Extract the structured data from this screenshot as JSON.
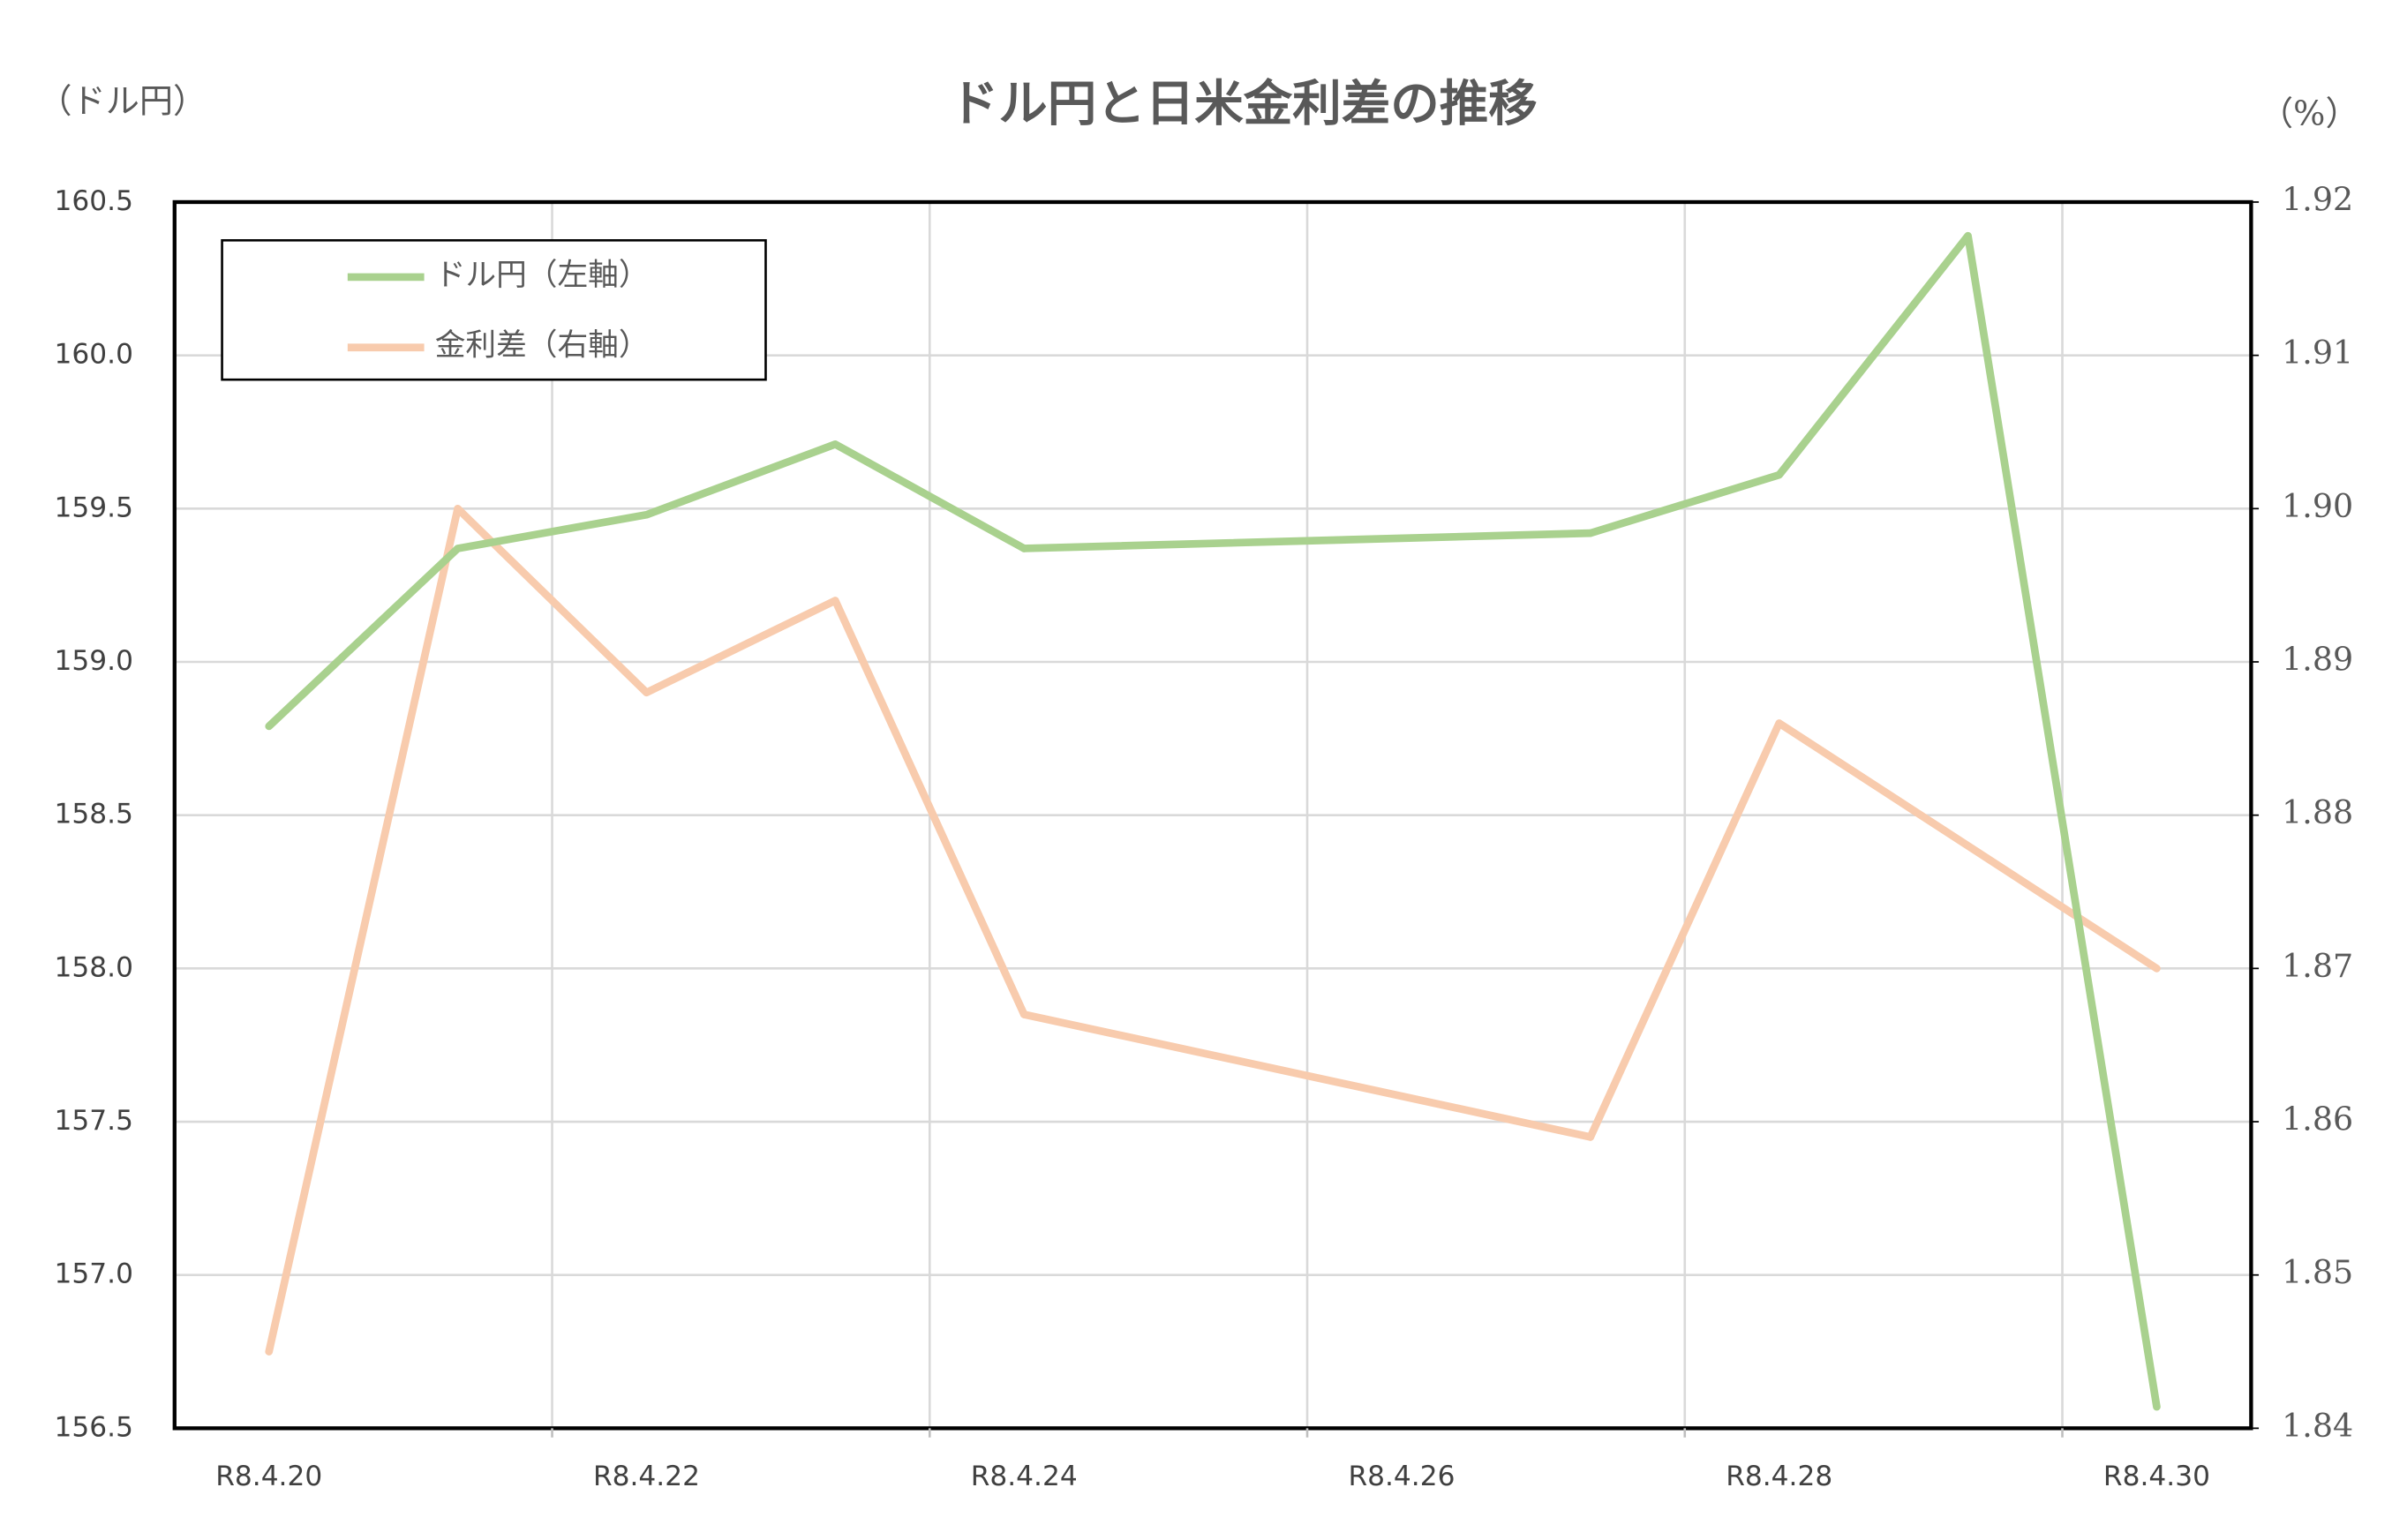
{
  "chart_data": {
    "type": "line",
    "title": "ドル円と日米金利差の推移",
    "y_axis_label": "（ドル円）",
    "y2_axis_label": "（%）",
    "categories": [
      "R8.4.20",
      null,
      "R8.4.22",
      null,
      "R8.4.24",
      null,
      "R8.4.26",
      null,
      "R8.4.28",
      null,
      "R8.4.30"
    ],
    "series": [
      {
        "name": "ドル円（左軸）",
        "color": "#a9d18e",
        "values": [
          158.79,
          159.37,
          159.48,
          159.71,
          159.37,
          null,
          null,
          159.42,
          159.61,
          160.39,
          156.57
        ]
      },
      {
        "name": "金利差（右軸）",
        "color": "#f8cbad",
        "axis": "y2",
        "values": [
          1.845,
          1.9,
          1.888,
          1.894,
          1.867,
          null,
          null,
          1.859,
          1.886,
          1.878,
          1.87
        ]
      }
    ],
    "span_gaps": true,
    "ylim": [
      156.5,
      160.5
    ],
    "yticks": [
      156.5,
      {
        "value": 157,
        "label": "157.0"
      },
      157.5,
      {
        "value": 158,
        "label": "158.0"
      },
      158.5,
      {
        "value": 159,
        "label": "159.0"
      },
      159.5,
      {
        "value": 160,
        "label": "160.0"
      },
      160.5
    ],
    "y2lim": [
      1.84,
      1.92
    ],
    "y2ticks": [
      1.84,
      1.85,
      1.86,
      1.87,
      1.88,
      1.89,
      {
        "value": 1.9,
        "label": "1.90"
      },
      1.91,
      1.92
    ],
    "grid": true,
    "legend": "top-left"
  }
}
